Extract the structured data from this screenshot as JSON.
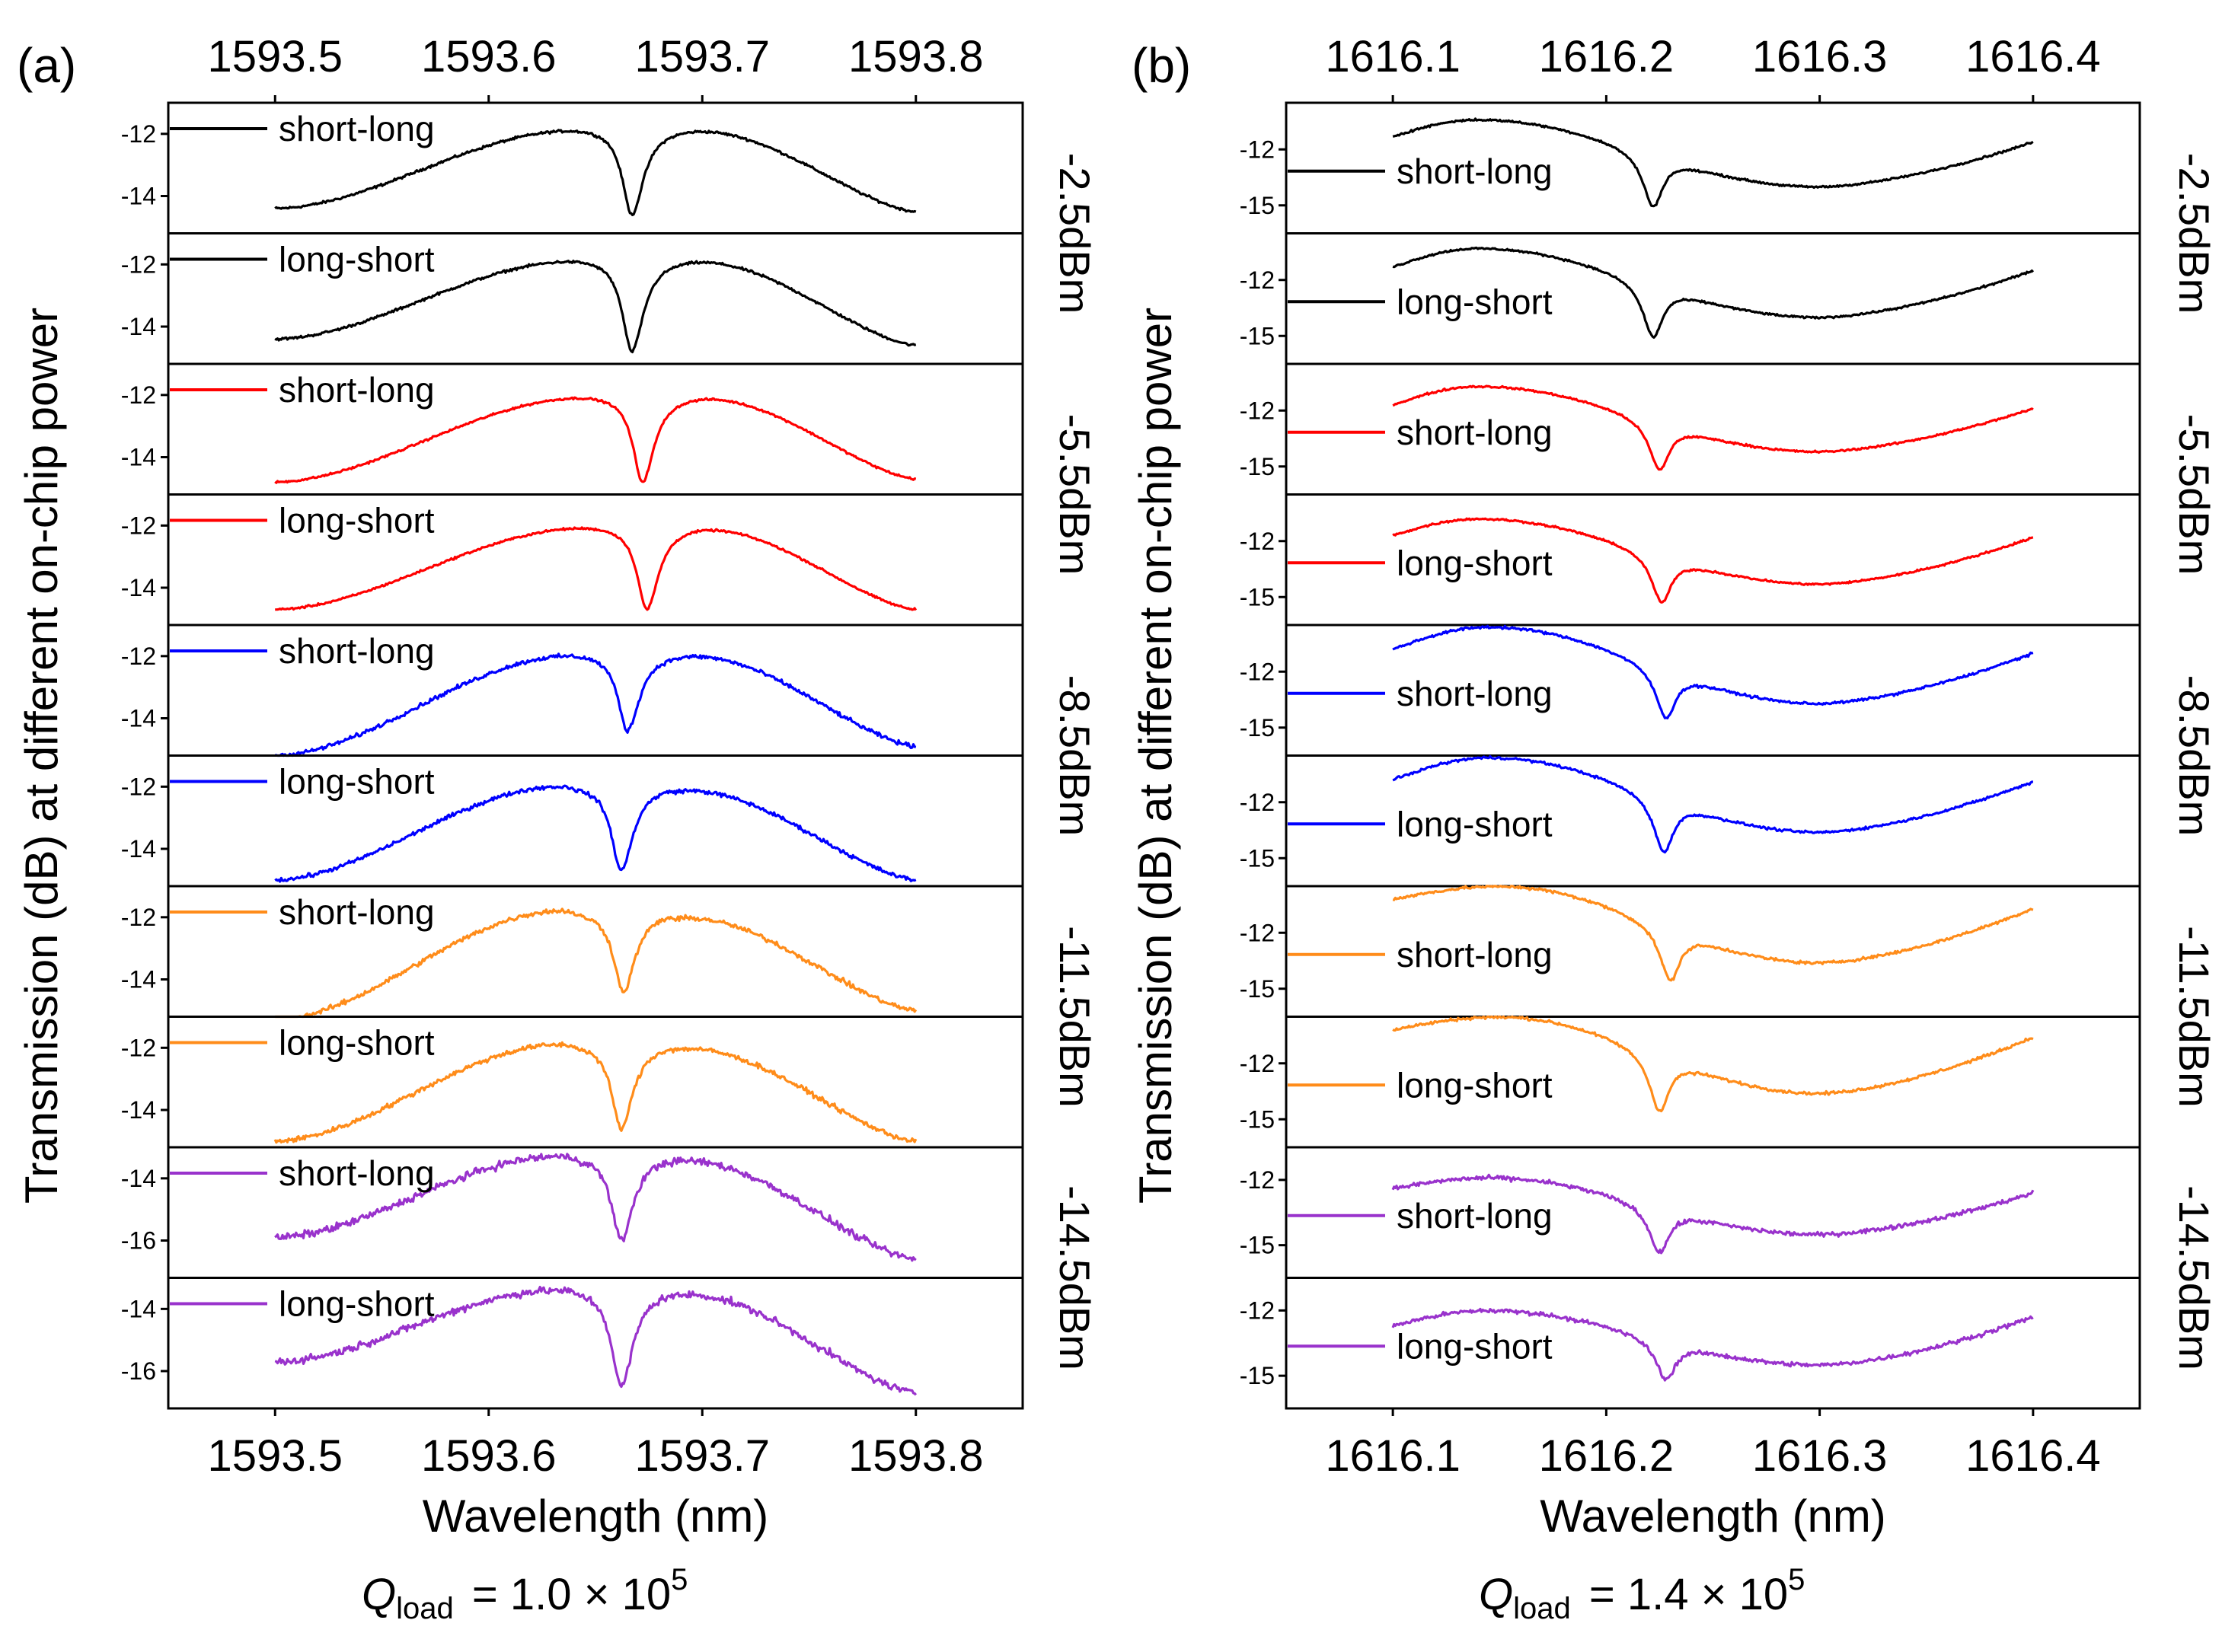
{
  "chart_data": [
    {
      "type": "line",
      "panel_label": "(a)",
      "xlabel": "Wavelength (nm)",
      "ylabel": "Transmission (dB) at different on-chip power",
      "xlim": [
        1593.45,
        1593.85
      ],
      "x_ticks": [
        1593.5,
        1593.6,
        1593.7,
        1593.8
      ],
      "x_tick_labels": [
        "1593.5",
        "1593.6",
        "1593.7",
        "1593.8"
      ],
      "dip_shape": "asymmetric_lorentzian",
      "annotation": {
        "q_symbol": "Q",
        "q_subscript": "load",
        "q_value": "= 1.0 × 10",
        "q_exponent": "5"
      },
      "power_labels": [
        "-2.5dBm",
        "-5.5dBm",
        "-8.5dBm",
        "-11.5dBm",
        "-14.5dBm"
      ],
      "series": [
        {
          "name": "short-long",
          "power": "-2.5dBm",
          "color": "#000000",
          "x_range": [
            1593.5,
            1593.8
          ],
          "ylim": [
            -15.2,
            -11.0
          ],
          "y_ticks": [
            -14,
            -12
          ],
          "y_tick_labels": [
            "-14",
            "-12"
          ],
          "baseline_start": -14.4,
          "peak_left": -11.8,
          "peak_left_x": 1593.648,
          "dip_x": 1593.667,
          "dip_min": -14.6,
          "peak_right": -11.8,
          "peak_right_x": 1593.692,
          "baseline_end": -14.5,
          "noise": 0.06
        },
        {
          "name": "long-short",
          "power": "-2.5dBm",
          "color": "#000000",
          "x_range": [
            1593.5,
            1593.8
          ],
          "ylim": [
            -15.2,
            -11.0
          ],
          "y_ticks": [
            -14,
            -12
          ],
          "y_tick_labels": [
            "-14",
            "-12"
          ],
          "baseline_start": -14.4,
          "peak_left": -11.8,
          "peak_left_x": 1593.648,
          "dip_x": 1593.667,
          "dip_min": -14.8,
          "peak_right": -11.8,
          "peak_right_x": 1593.692,
          "baseline_end": -14.6,
          "noise": 0.06
        },
        {
          "name": "short-long",
          "power": "-5.5dBm",
          "color": "#ff0000",
          "x_range": [
            1593.5,
            1593.8
          ],
          "ylim": [
            -15.2,
            -11.0
          ],
          "y_ticks": [
            -14,
            -12
          ],
          "y_tick_labels": [
            "-14",
            "-12"
          ],
          "baseline_start": -14.8,
          "peak_left": -12.0,
          "peak_left_x": 1593.652,
          "dip_x": 1593.672,
          "dip_min": -14.8,
          "peak_right": -12.0,
          "peak_right_x": 1593.695,
          "baseline_end": -14.7,
          "noise": 0.05
        },
        {
          "name": "long-short",
          "power": "-5.5dBm",
          "color": "#ff0000",
          "x_range": [
            1593.5,
            1593.8
          ],
          "ylim": [
            -15.2,
            -11.0
          ],
          "y_ticks": [
            -14,
            -12
          ],
          "y_tick_labels": [
            "-14",
            "-12"
          ],
          "baseline_start": -14.7,
          "peak_left": -12.0,
          "peak_left_x": 1593.652,
          "dip_x": 1593.674,
          "dip_min": -14.7,
          "peak_right": -12.0,
          "peak_right_x": 1593.695,
          "baseline_end": -14.7,
          "noise": 0.05
        },
        {
          "name": "short-long",
          "power": "-8.5dBm",
          "color": "#0000ff",
          "x_range": [
            1593.5,
            1593.8
          ],
          "ylim": [
            -15.2,
            -11.0
          ],
          "y_ticks": [
            -14,
            -12
          ],
          "y_tick_labels": [
            "-14",
            "-12"
          ],
          "baseline_start": -15.2,
          "peak_left": -11.9,
          "peak_left_x": 1593.645,
          "dip_x": 1593.665,
          "dip_min": -14.4,
          "peak_right": -11.9,
          "peak_right_x": 1593.69,
          "baseline_end": -14.9,
          "noise": 0.1
        },
        {
          "name": "long-short",
          "power": "-8.5dBm",
          "color": "#0000ff",
          "x_range": [
            1593.5,
            1593.8
          ],
          "ylim": [
            -15.2,
            -11.0
          ],
          "y_ticks": [
            -14,
            -12
          ],
          "y_tick_labels": [
            "-14",
            "-12"
          ],
          "baseline_start": -15.0,
          "peak_left": -11.9,
          "peak_left_x": 1593.64,
          "dip_x": 1593.662,
          "dip_min": -14.7,
          "peak_right": -12.0,
          "peak_right_x": 1593.686,
          "baseline_end": -15.0,
          "noise": 0.1
        },
        {
          "name": "short-long",
          "power": "-11.5dBm",
          "color": "#ff8c1a",
          "x_range": [
            1593.5,
            1593.8
          ],
          "ylim": [
            -15.2,
            -11.0
          ],
          "y_ticks": [
            -14,
            -12
          ],
          "y_tick_labels": [
            "-14",
            "-12"
          ],
          "baseline_start": -15.3,
          "peak_left": -11.7,
          "peak_left_x": 1593.64,
          "dip_x": 1593.663,
          "dip_min": -14.4,
          "peak_right": -11.9,
          "peak_right_x": 1593.686,
          "baseline_end": -15.0,
          "noise": 0.12
        },
        {
          "name": "long-short",
          "power": "-11.5dBm",
          "color": "#ff8c1a",
          "x_range": [
            1593.5,
            1593.8
          ],
          "ylim": [
            -15.2,
            -11.0
          ],
          "y_ticks": [
            -14,
            -12
          ],
          "y_tick_labels": [
            "-14",
            "-12"
          ],
          "baseline_start": -15.0,
          "peak_left": -11.8,
          "peak_left_x": 1593.64,
          "dip_x": 1593.662,
          "dip_min": -14.6,
          "peak_right": -11.9,
          "peak_right_x": 1593.686,
          "baseline_end": -15.0,
          "noise": 0.12
        },
        {
          "name": "short-long",
          "power": "-14.5dBm",
          "color": "#9932cc",
          "x_range": [
            1593.5,
            1593.8
          ],
          "ylim": [
            -17.2,
            -13.0
          ],
          "y_ticks": [
            -16,
            -14
          ],
          "y_tick_labels": [
            "-16",
            "-14"
          ],
          "baseline_start": -15.9,
          "peak_left": -13.2,
          "peak_left_x": 1593.64,
          "dip_x": 1593.662,
          "dip_min": -16.0,
          "peak_right": -13.3,
          "peak_right_x": 1593.685,
          "baseline_end": -16.6,
          "noise": 0.18
        },
        {
          "name": "long-short",
          "power": "-14.5dBm",
          "color": "#9932cc",
          "x_range": [
            1593.5,
            1593.8
          ],
          "ylim": [
            -17.2,
            -13.0
          ],
          "y_ticks": [
            -16,
            -14
          ],
          "y_tick_labels": [
            "-16",
            "-14"
          ],
          "baseline_start": -15.7,
          "peak_left": -13.3,
          "peak_left_x": 1593.64,
          "dip_x": 1593.662,
          "dip_min": -16.5,
          "peak_right": -13.4,
          "peak_right_x": 1593.686,
          "baseline_end": -16.7,
          "noise": 0.18
        }
      ]
    },
    {
      "type": "line",
      "panel_label": "(b)",
      "xlabel": "Wavelength (nm)",
      "ylabel": "Transmission (dB) at different on-chip power",
      "xlim": [
        1616.05,
        1616.45
      ],
      "x_ticks": [
        1616.1,
        1616.2,
        1616.3,
        1616.4
      ],
      "x_tick_labels": [
        "1616.1",
        "1616.2",
        "1616.3",
        "1616.4"
      ],
      "dip_shape": "broad_background",
      "annotation": {
        "q_symbol": "Q",
        "q_subscript": "load",
        "q_value": "= 1.4 × 10",
        "q_exponent": "5"
      },
      "power_labels": [
        "-2.5dBm",
        "-5.5dBm",
        "-8.5dBm",
        "-11.5dBm",
        "-14.5dBm"
      ],
      "series": [
        {
          "name": "short-long",
          "power": "-2.5dBm",
          "color": "#000000",
          "x_range": [
            1616.1,
            1616.4
          ],
          "ylim": [
            -16.5,
            -9.5
          ],
          "y_ticks": [
            -15,
            -12
          ],
          "y_tick_labels": [
            "-15",
            "-12"
          ],
          "y_start": -11.3,
          "peak_x": 1616.14,
          "peak_y": -10.4,
          "dip_x": 1616.222,
          "dip_min": -15.3,
          "valley_x": 1616.3,
          "valley_y": -14.0,
          "y_end": -11.6,
          "noise": 0.08
        },
        {
          "name": "long-short",
          "power": "-2.5dBm",
          "color": "#000000",
          "x_range": [
            1616.1,
            1616.4
          ],
          "ylim": [
            -16.5,
            -9.5
          ],
          "y_ticks": [
            -15,
            -12
          ],
          "y_tick_labels": [
            "-15",
            "-12"
          ],
          "y_start": -11.3,
          "peak_x": 1616.14,
          "peak_y": -10.3,
          "dip_x": 1616.222,
          "dip_min": -15.3,
          "valley_x": 1616.3,
          "valley_y": -14.0,
          "y_end": -11.5,
          "noise": 0.08
        },
        {
          "name": "short-long",
          "power": "-5.5dBm",
          "color": "#ff0000",
          "x_range": [
            1616.1,
            1616.4
          ],
          "ylim": [
            -16.5,
            -9.5
          ],
          "y_ticks": [
            -15,
            -12
          ],
          "y_tick_labels": [
            "-15",
            "-12"
          ],
          "y_start": -11.7,
          "peak_x": 1616.14,
          "peak_y": -10.7,
          "dip_x": 1616.225,
          "dip_min": -15.4,
          "valley_x": 1616.3,
          "valley_y": -14.2,
          "y_end": -11.9,
          "noise": 0.08
        },
        {
          "name": "long-short",
          "power": "-5.5dBm",
          "color": "#ff0000",
          "x_range": [
            1616.1,
            1616.4
          ],
          "ylim": [
            -16.5,
            -9.5
          ],
          "y_ticks": [
            -15,
            -12
          ],
          "y_tick_labels": [
            "-15",
            "-12"
          ],
          "y_start": -11.7,
          "peak_x": 1616.14,
          "peak_y": -10.8,
          "dip_x": 1616.226,
          "dip_min": -15.5,
          "valley_x": 1616.3,
          "valley_y": -14.3,
          "y_end": -11.8,
          "noise": 0.08
        },
        {
          "name": "short-long",
          "power": "-8.5dBm",
          "color": "#0000ff",
          "x_range": [
            1616.1,
            1616.4
          ],
          "ylim": [
            -16.5,
            -9.5
          ],
          "y_ticks": [
            -15,
            -12
          ],
          "y_tick_labels": [
            "-15",
            "-12"
          ],
          "y_start": -10.8,
          "peak_x": 1616.145,
          "peak_y": -9.6,
          "dip_x": 1616.228,
          "dip_min": -14.7,
          "valley_x": 1616.3,
          "valley_y": -13.7,
          "y_end": -11.0,
          "noise": 0.1
        },
        {
          "name": "long-short",
          "power": "-8.5dBm",
          "color": "#0000ff",
          "x_range": [
            1616.1,
            1616.4
          ],
          "ylim": [
            -16.5,
            -9.5
          ],
          "y_ticks": [
            -15,
            -12
          ],
          "y_tick_labels": [
            "-15",
            "-12"
          ],
          "y_start": -10.8,
          "peak_x": 1616.145,
          "peak_y": -9.6,
          "dip_x": 1616.227,
          "dip_min": -14.9,
          "valley_x": 1616.3,
          "valley_y": -13.6,
          "y_end": -10.9,
          "noise": 0.1
        },
        {
          "name": "short-long",
          "power": "-11.5dBm",
          "color": "#ff8c1a",
          "x_range": [
            1616.1,
            1616.4
          ],
          "ylim": [
            -16.5,
            -9.5
          ],
          "y_ticks": [
            -15,
            -12
          ],
          "y_tick_labels": [
            "-15",
            "-12"
          ],
          "y_start": -10.2,
          "peak_x": 1616.15,
          "peak_y": -9.5,
          "dip_x": 1616.23,
          "dip_min": -14.8,
          "valley_x": 1616.3,
          "valley_y": -13.6,
          "y_end": -10.7,
          "noise": 0.12
        },
        {
          "name": "long-short",
          "power": "-11.5dBm",
          "color": "#ff8c1a",
          "x_range": [
            1616.1,
            1616.4
          ],
          "ylim": [
            -16.5,
            -9.5
          ],
          "y_ticks": [
            -15,
            -12
          ],
          "y_tick_labels": [
            "-15",
            "-12"
          ],
          "y_start": -10.2,
          "peak_x": 1616.15,
          "peak_y": -9.5,
          "dip_x": 1616.225,
          "dip_min": -14.8,
          "valley_x": 1616.3,
          "valley_y": -13.6,
          "y_end": -10.6,
          "noise": 0.12
        },
        {
          "name": "short-long",
          "power": "-14.5dBm",
          "color": "#9932cc",
          "x_range": [
            1616.1,
            1616.4
          ],
          "ylim": [
            -16.5,
            -10.5
          ],
          "y_ticks": [
            -15,
            -12
          ],
          "y_tick_labels": [
            "-15",
            "-12"
          ],
          "y_start": -12.4,
          "peak_x": 1616.145,
          "peak_y": -11.9,
          "dip_x": 1616.225,
          "dip_min": -15.5,
          "valley_x": 1616.3,
          "valley_y": -14.5,
          "y_end": -12.6,
          "noise": 0.15
        },
        {
          "name": "long-short",
          "power": "-14.5dBm",
          "color": "#9932cc",
          "x_range": [
            1616.1,
            1616.4
          ],
          "ylim": [
            -16.5,
            -10.5
          ],
          "y_ticks": [
            -15,
            -12
          ],
          "y_tick_labels": [
            "-15",
            "-12"
          ],
          "y_start": -12.7,
          "peak_x": 1616.145,
          "peak_y": -12.0,
          "dip_x": 1616.228,
          "dip_min": -15.3,
          "valley_x": 1616.3,
          "valley_y": -14.5,
          "y_end": -12.3,
          "noise": 0.15
        }
      ]
    }
  ]
}
